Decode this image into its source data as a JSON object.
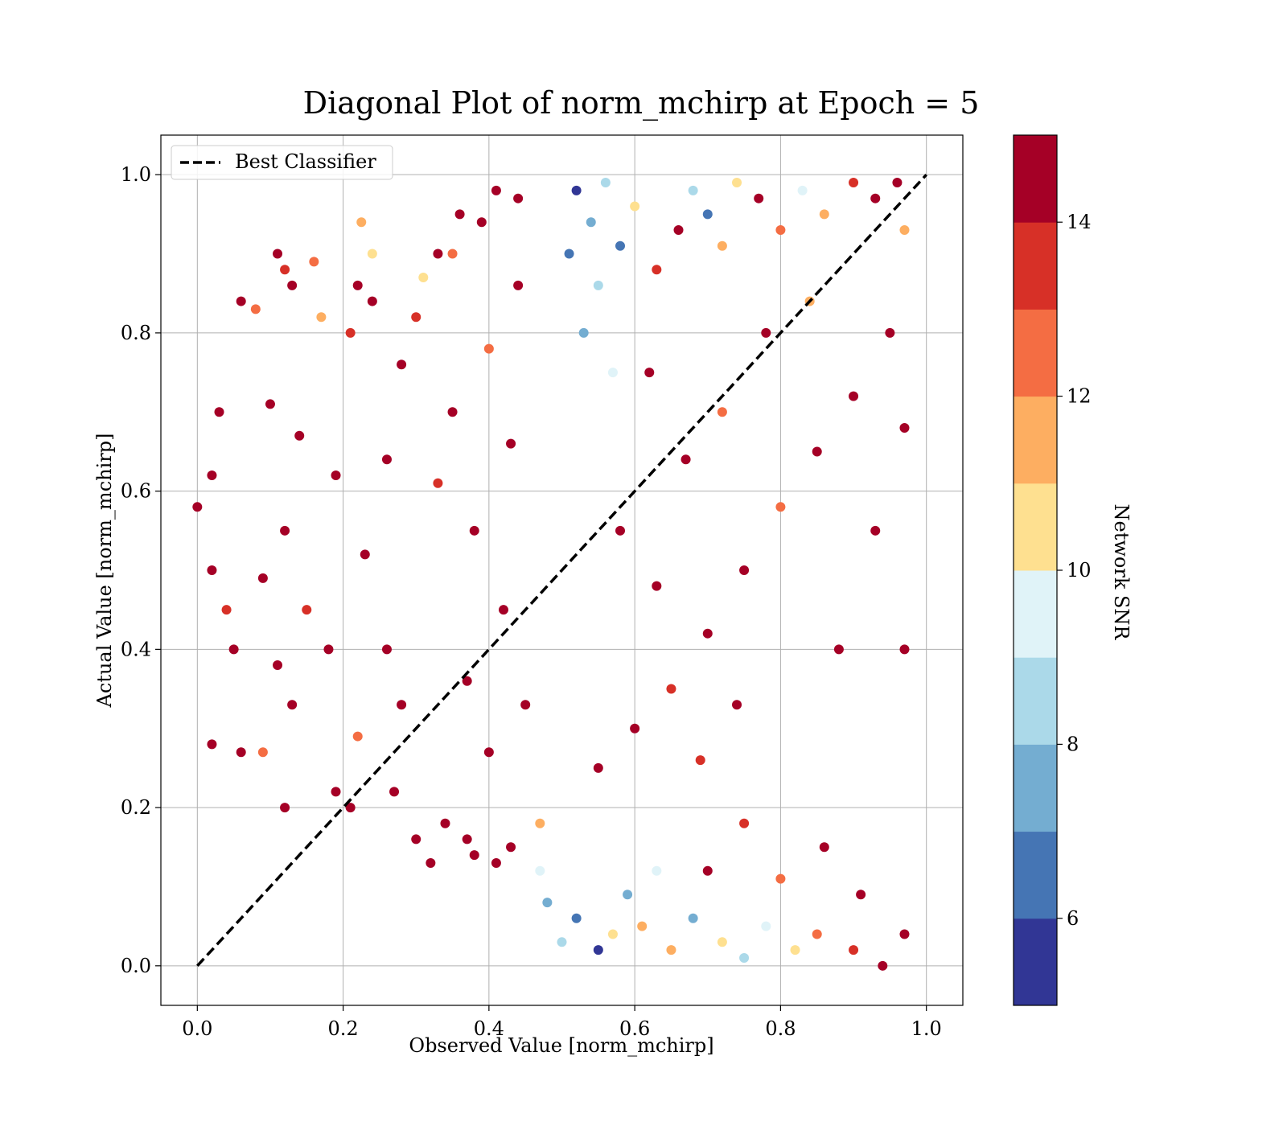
{
  "chart_data": {
    "type": "scatter",
    "title": "Diagonal Plot of norm_mchirp at Epoch = 5",
    "xlabel": "Observed Value [norm_mchirp]",
    "ylabel": "Actual Value [norm_mchirp]",
    "xlim": [
      -0.05,
      1.05
    ],
    "ylim": [
      -0.05,
      1.05
    ],
    "x_ticks": [
      0.0,
      0.2,
      0.4,
      0.6,
      0.8,
      1.0
    ],
    "y_ticks": [
      0.0,
      0.2,
      0.4,
      0.6,
      0.8,
      1.0
    ],
    "x_tick_labels": [
      "0.0",
      "0.2",
      "0.4",
      "0.6",
      "0.8",
      "1.0"
    ],
    "y_tick_labels": [
      "0.0",
      "0.2",
      "0.4",
      "0.6",
      "0.8",
      "1.0"
    ],
    "grid": true,
    "legend": {
      "position": "upper-left",
      "entries": [
        "Best Classifier"
      ]
    },
    "reference_line": {
      "name": "Best Classifier",
      "x": [
        0.0,
        1.0
      ],
      "y": [
        0.0,
        1.0
      ],
      "style": "dashed",
      "color": "#000000"
    },
    "colorbar": {
      "label": "Network SNR",
      "range": [
        5,
        15
      ],
      "ticks": [
        6,
        8,
        10,
        12,
        14
      ],
      "tick_labels": [
        "6",
        "8",
        "10",
        "12",
        "14"
      ],
      "colors": [
        "#313695",
        "#4575b4",
        "#74add1",
        "#abd9e9",
        "#e0f3f8",
        "#fee090",
        "#fdae61",
        "#f46d43",
        "#d73027",
        "#a50026"
      ]
    },
    "points": [
      {
        "x": 0.0,
        "y": 0.58,
        "snr": 14.6
      },
      {
        "x": 0.02,
        "y": 0.62,
        "snr": 14.5
      },
      {
        "x": 0.03,
        "y": 0.7,
        "snr": 14.3
      },
      {
        "x": 0.02,
        "y": 0.5,
        "snr": 14.8
      },
      {
        "x": 0.04,
        "y": 0.45,
        "snr": 13.2
      },
      {
        "x": 0.05,
        "y": 0.4,
        "snr": 14.9
      },
      {
        "x": 0.06,
        "y": 0.84,
        "snr": 14.7
      },
      {
        "x": 0.06,
        "y": 0.27,
        "snr": 14.2
      },
      {
        "x": 0.02,
        "y": 0.28,
        "snr": 14.5
      },
      {
        "x": 0.08,
        "y": 0.83,
        "snr": 12.6
      },
      {
        "x": 0.09,
        "y": 0.49,
        "snr": 14.1
      },
      {
        "x": 0.1,
        "y": 0.71,
        "snr": 14.8
      },
      {
        "x": 0.11,
        "y": 0.9,
        "snr": 14.9
      },
      {
        "x": 0.12,
        "y": 0.88,
        "snr": 13.4
      },
      {
        "x": 0.13,
        "y": 0.86,
        "snr": 14.6
      },
      {
        "x": 0.16,
        "y": 0.89,
        "snr": 12.4
      },
      {
        "x": 0.17,
        "y": 0.82,
        "snr": 11.2
      },
      {
        "x": 0.14,
        "y": 0.67,
        "snr": 14.4
      },
      {
        "x": 0.12,
        "y": 0.55,
        "snr": 14.7
      },
      {
        "x": 0.15,
        "y": 0.45,
        "snr": 13.6
      },
      {
        "x": 0.11,
        "y": 0.38,
        "snr": 14.9
      },
      {
        "x": 0.13,
        "y": 0.33,
        "snr": 14.3
      },
      {
        "x": 0.12,
        "y": 0.2,
        "snr": 14.6
      },
      {
        "x": 0.09,
        "y": 0.27,
        "snr": 12.8
      },
      {
        "x": 0.19,
        "y": 0.62,
        "snr": 14.5
      },
      {
        "x": 0.21,
        "y": 0.8,
        "snr": 13.3
      },
      {
        "x": 0.22,
        "y": 0.86,
        "snr": 14.8
      },
      {
        "x": 0.225,
        "y": 0.94,
        "snr": 11.4
      },
      {
        "x": 0.24,
        "y": 0.9,
        "snr": 10.6
      },
      {
        "x": 0.24,
        "y": 0.84,
        "snr": 14.7
      },
      {
        "x": 0.18,
        "y": 0.4,
        "snr": 14.6
      },
      {
        "x": 0.19,
        "y": 0.22,
        "snr": 14.5
      },
      {
        "x": 0.21,
        "y": 0.2,
        "snr": 14.7
      },
      {
        "x": 0.22,
        "y": 0.29,
        "snr": 12.5
      },
      {
        "x": 0.23,
        "y": 0.52,
        "snr": 14.4
      },
      {
        "x": 0.26,
        "y": 0.64,
        "snr": 14.2
      },
      {
        "x": 0.28,
        "y": 0.76,
        "snr": 14.8
      },
      {
        "x": 0.3,
        "y": 0.82,
        "snr": 13.1
      },
      {
        "x": 0.31,
        "y": 0.87,
        "snr": 10.4
      },
      {
        "x": 0.33,
        "y": 0.9,
        "snr": 14.6
      },
      {
        "x": 0.35,
        "y": 0.9,
        "snr": 12.9
      },
      {
        "x": 0.36,
        "y": 0.95,
        "snr": 14.3
      },
      {
        "x": 0.39,
        "y": 0.94,
        "snr": 14.7
      },
      {
        "x": 0.41,
        "y": 0.98,
        "snr": 14.8
      },
      {
        "x": 0.44,
        "y": 0.97,
        "snr": 14.5
      },
      {
        "x": 0.26,
        "y": 0.4,
        "snr": 14.6
      },
      {
        "x": 0.28,
        "y": 0.33,
        "snr": 14.4
      },
      {
        "x": 0.27,
        "y": 0.22,
        "snr": 14.8
      },
      {
        "x": 0.3,
        "y": 0.16,
        "snr": 14.6
      },
      {
        "x": 0.32,
        "y": 0.13,
        "snr": 14.5
      },
      {
        "x": 0.34,
        "y": 0.18,
        "snr": 14.7
      },
      {
        "x": 0.37,
        "y": 0.16,
        "snr": 14.3
      },
      {
        "x": 0.38,
        "y": 0.14,
        "snr": 14.8
      },
      {
        "x": 0.41,
        "y": 0.13,
        "snr": 14.5
      },
      {
        "x": 0.43,
        "y": 0.15,
        "snr": 14.4
      },
      {
        "x": 0.33,
        "y": 0.61,
        "snr": 13.5
      },
      {
        "x": 0.35,
        "y": 0.7,
        "snr": 14.6
      },
      {
        "x": 0.38,
        "y": 0.55,
        "snr": 14.8
      },
      {
        "x": 0.4,
        "y": 0.78,
        "snr": 12.7
      },
      {
        "x": 0.42,
        "y": 0.45,
        "snr": 14.7
      },
      {
        "x": 0.37,
        "y": 0.36,
        "snr": 14.5
      },
      {
        "x": 0.4,
        "y": 0.27,
        "snr": 14.6
      },
      {
        "x": 0.43,
        "y": 0.66,
        "snr": 14.9
      },
      {
        "x": 0.44,
        "y": 0.86,
        "snr": 14.4
      },
      {
        "x": 0.45,
        "y": 0.33,
        "snr": 14.8
      },
      {
        "x": 0.47,
        "y": 0.18,
        "snr": 11.5
      },
      {
        "x": 0.47,
        "y": 0.12,
        "snr": 9.2
      },
      {
        "x": 0.48,
        "y": 0.08,
        "snr": 7.5
      },
      {
        "x": 0.5,
        "y": 0.03,
        "snr": 8.6
      },
      {
        "x": 0.52,
        "y": 0.06,
        "snr": 6.5
      },
      {
        "x": 0.55,
        "y": 0.02,
        "snr": 5.6
      },
      {
        "x": 0.57,
        "y": 0.04,
        "snr": 10.3
      },
      {
        "x": 0.59,
        "y": 0.09,
        "snr": 7.2
      },
      {
        "x": 0.61,
        "y": 0.05,
        "snr": 11.3
      },
      {
        "x": 0.63,
        "y": 0.12,
        "snr": 9.6
      },
      {
        "x": 0.52,
        "y": 0.98,
        "snr": 5.9
      },
      {
        "x": 0.54,
        "y": 0.94,
        "snr": 7.4
      },
      {
        "x": 0.56,
        "y": 0.99,
        "snr": 8.4
      },
      {
        "x": 0.58,
        "y": 0.91,
        "snr": 6.4
      },
      {
        "x": 0.55,
        "y": 0.86,
        "snr": 8.8
      },
      {
        "x": 0.53,
        "y": 0.8,
        "snr": 7.8
      },
      {
        "x": 0.57,
        "y": 0.75,
        "snr": 9.4
      },
      {
        "x": 0.51,
        "y": 0.9,
        "snr": 6.7
      },
      {
        "x": 0.6,
        "y": 0.96,
        "snr": 10.5
      },
      {
        "x": 0.63,
        "y": 0.88,
        "snr": 13.2
      },
      {
        "x": 0.66,
        "y": 0.93,
        "snr": 14.7
      },
      {
        "x": 0.68,
        "y": 0.98,
        "snr": 8.2
      },
      {
        "x": 0.7,
        "y": 0.95,
        "snr": 6.1
      },
      {
        "x": 0.72,
        "y": 0.91,
        "snr": 11.6
      },
      {
        "x": 0.74,
        "y": 0.99,
        "snr": 10.2
      },
      {
        "x": 0.77,
        "y": 0.97,
        "snr": 14.5
      },
      {
        "x": 0.8,
        "y": 0.93,
        "snr": 12.3
      },
      {
        "x": 0.83,
        "y": 0.98,
        "snr": 9.6
      },
      {
        "x": 0.86,
        "y": 0.95,
        "snr": 11.1
      },
      {
        "x": 0.9,
        "y": 0.99,
        "snr": 13.5
      },
      {
        "x": 0.93,
        "y": 0.97,
        "snr": 14.6
      },
      {
        "x": 0.96,
        "y": 0.99,
        "snr": 14.8
      },
      {
        "x": 0.97,
        "y": 0.93,
        "snr": 11.7
      },
      {
        "x": 0.97,
        "y": 0.68,
        "snr": 14.5
      },
      {
        "x": 0.97,
        "y": 0.4,
        "snr": 14.7
      },
      {
        "x": 0.97,
        "y": 0.04,
        "snr": 14.6
      },
      {
        "x": 0.94,
        "y": 0.0,
        "snr": 14.8
      },
      {
        "x": 0.9,
        "y": 0.02,
        "snr": 13.4
      },
      {
        "x": 0.85,
        "y": 0.04,
        "snr": 12.2
      },
      {
        "x": 0.82,
        "y": 0.02,
        "snr": 10.8
      },
      {
        "x": 0.78,
        "y": 0.05,
        "snr": 9.3
      },
      {
        "x": 0.75,
        "y": 0.01,
        "snr": 8.7
      },
      {
        "x": 0.72,
        "y": 0.03,
        "snr": 10.6
      },
      {
        "x": 0.68,
        "y": 0.06,
        "snr": 7.9
      },
      {
        "x": 0.65,
        "y": 0.02,
        "snr": 11.8
      },
      {
        "x": 0.7,
        "y": 0.12,
        "snr": 14.4
      },
      {
        "x": 0.75,
        "y": 0.18,
        "snr": 13.2
      },
      {
        "x": 0.8,
        "y": 0.11,
        "snr": 12.5
      },
      {
        "x": 0.86,
        "y": 0.15,
        "snr": 14.7
      },
      {
        "x": 0.91,
        "y": 0.09,
        "snr": 14.9
      },
      {
        "x": 0.55,
        "y": 0.25,
        "snr": 14.6
      },
      {
        "x": 0.6,
        "y": 0.3,
        "snr": 14.8
      },
      {
        "x": 0.65,
        "y": 0.35,
        "snr": 13.3
      },
      {
        "x": 0.7,
        "y": 0.42,
        "snr": 14.7
      },
      {
        "x": 0.75,
        "y": 0.5,
        "snr": 14.5
      },
      {
        "x": 0.8,
        "y": 0.58,
        "snr": 12.6
      },
      {
        "x": 0.85,
        "y": 0.65,
        "snr": 14.8
      },
      {
        "x": 0.9,
        "y": 0.72,
        "snr": 14.6
      },
      {
        "x": 0.95,
        "y": 0.8,
        "snr": 14.9
      },
      {
        "x": 0.93,
        "y": 0.55,
        "snr": 14.7
      },
      {
        "x": 0.62,
        "y": 0.75,
        "snr": 14.4
      },
      {
        "x": 0.67,
        "y": 0.64,
        "snr": 14.8
      },
      {
        "x": 0.72,
        "y": 0.7,
        "snr": 12.9
      },
      {
        "x": 0.78,
        "y": 0.8,
        "snr": 14.6
      },
      {
        "x": 0.84,
        "y": 0.84,
        "snr": 11.4
      },
      {
        "x": 0.58,
        "y": 0.55,
        "snr": 14.7
      },
      {
        "x": 0.63,
        "y": 0.48,
        "snr": 14.5
      },
      {
        "x": 0.69,
        "y": 0.26,
        "snr": 13.6
      },
      {
        "x": 0.74,
        "y": 0.33,
        "snr": 14.8
      },
      {
        "x": 0.88,
        "y": 0.4,
        "snr": 14.6
      }
    ]
  }
}
